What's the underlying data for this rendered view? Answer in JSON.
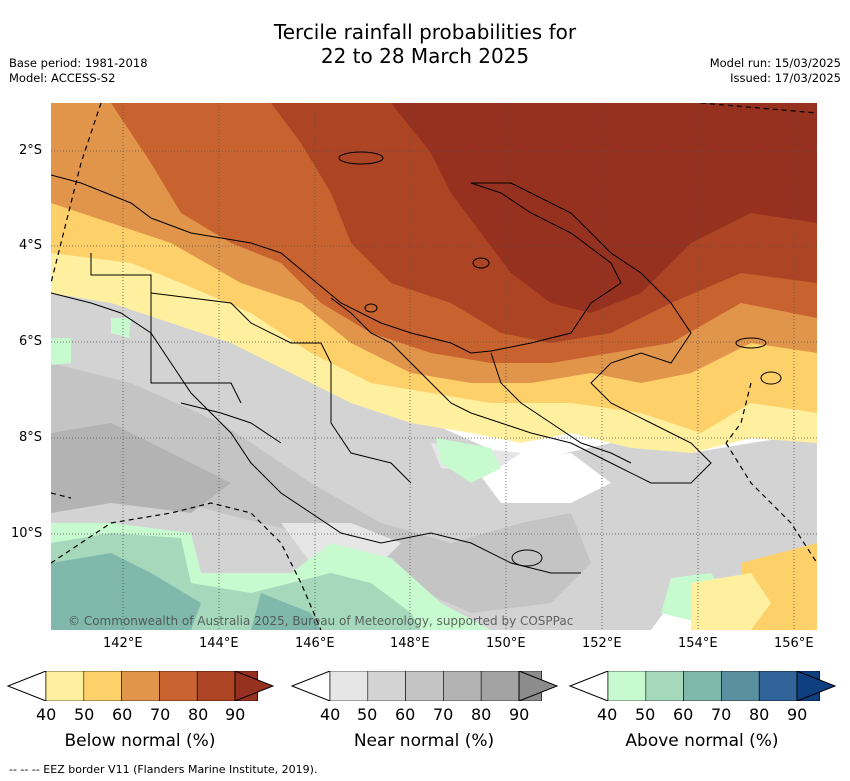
{
  "title_line1": "Tercile rainfall probabilities for",
  "title_line2": "22 to 28 March 2025",
  "base_period": "Base period: 1981-2018",
  "model": "Model: ACCESS-S2",
  "model_run": "Model run: 15/03/2025",
  "issued": "Issued: 17/03/2025",
  "copyright": "© Commonwealth of Australia 2025, Bureau of Meteorology, supported by COSPPac",
  "lat_labels": [
    "2°S",
    "4°S",
    "6°S",
    "8°S",
    "10°S"
  ],
  "lon_labels": [
    "142°E",
    "144°E",
    "146°E",
    "148°E",
    "150°E",
    "152°E",
    "154°E",
    "156°E"
  ],
  "colorbars": [
    {
      "label": "Below normal (%)",
      "ticks": [
        "40",
        "50",
        "60",
        "70",
        "80",
        "90"
      ],
      "colors": [
        "#fff0a0",
        "#fed06a",
        "#e0954a",
        "#c8622f",
        "#ad4424",
        "#96301f"
      ]
    },
    {
      "label": "Near normal (%)",
      "ticks": [
        "40",
        "50",
        "60",
        "70",
        "80",
        "90"
      ],
      "colors": [
        "#e6e6e6",
        "#d3d3d3",
        "#c4c4c4",
        "#b3b3b3",
        "#a3a3a3",
        "#8c8c8c"
      ]
    },
    {
      "label": "Above normal (%)",
      "ticks": [
        "40",
        "50",
        "60",
        "70",
        "80",
        "90"
      ],
      "colors": [
        "#c8fad0",
        "#a6d9bc",
        "#80b8ac",
        "#5a90a0",
        "#306498",
        "#103f80"
      ]
    }
  ],
  "footer": "--  --  -- EEZ border V11 (Flanders Marine Institute, 2019)."
}
